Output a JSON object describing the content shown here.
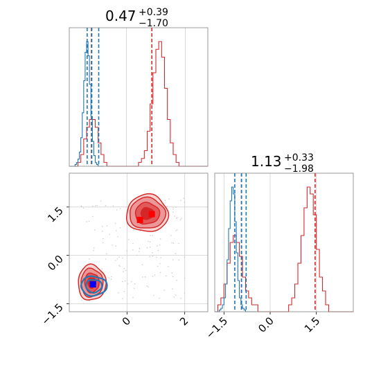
{
  "colors": {
    "red": "#d62728",
    "blue": "#1f77b4",
    "marker_blue": "#0000ff",
    "marker_red": "#ff0000",
    "grid": "#d0d0d0",
    "frame": "#7f7f7f"
  },
  "chart_data": [
    {
      "type": "histogram",
      "panel": "param1-marginal",
      "title": {
        "median": "0.47",
        "plus": "+0.39",
        "minus": "−1.70"
      },
      "xlim": [
        -2.0,
        2.8
      ],
      "grid": true,
      "series": [
        {
          "name": "",
          "color": "#d62728",
          "bin_start": -2.0,
          "bin_width": 0.1,
          "counts": [
            0,
            0,
            0,
            1,
            3,
            7,
            10,
            12,
            12,
            10,
            6,
            3,
            1,
            0,
            0,
            0,
            0,
            0,
            0,
            0,
            0,
            0,
            0,
            0,
            1,
            2,
            4,
            9,
            16,
            24,
            30,
            32,
            28,
            20,
            12,
            6,
            3,
            1,
            0,
            0,
            0,
            0,
            0,
            0,
            0,
            0,
            0,
            0
          ],
          "quantiles": [
            -1.23,
            -1.23,
            0.86
          ]
        },
        {
          "name": "",
          "color": "#1f77b4",
          "bin_start": -2.0,
          "bin_width": 0.05,
          "counts": [
            0,
            0,
            0,
            0,
            1,
            2,
            4,
            8,
            16,
            30,
            48,
            64,
            70,
            62,
            46,
            28,
            14,
            6,
            2,
            1,
            0,
            0,
            0,
            0
          ],
          "quantiles": [
            -1.38,
            -1.22,
            -0.98
          ]
        }
      ]
    },
    {
      "type": "histogram",
      "panel": "param2-marginal",
      "title": {
        "median": "1.13",
        "plus": "+0.33",
        "minus": "−1.98"
      },
      "xlim": [
        -1.8,
        2.7
      ],
      "xticks": [
        "−1.5",
        "0.0",
        "1.5"
      ],
      "grid": true,
      "series": [
        {
          "name": "",
          "color": "#d62728",
          "bin_start": -1.8,
          "bin_width": 0.1,
          "counts": [
            0,
            1,
            2,
            4,
            7,
            10,
            11,
            10,
            8,
            5,
            3,
            2,
            1,
            1,
            0,
            0,
            0,
            0,
            0,
            0,
            0,
            0,
            0,
            0,
            1,
            2,
            4,
            7,
            11,
            15,
            18,
            17,
            14,
            9,
            5,
            3,
            1,
            0,
            0,
            0,
            0,
            0,
            0,
            0,
            0
          ],
          "quantiles": [
            -0.93,
            -0.93,
            1.46
          ]
        },
        {
          "name": "",
          "color": "#1f77b4",
          "bin_start": -1.8,
          "bin_width": 0.05,
          "counts": [
            0,
            0,
            0,
            1,
            2,
            4,
            8,
            16,
            30,
            48,
            64,
            72,
            68,
            52,
            34,
            18,
            8,
            4,
            2,
            1,
            0,
            0,
            0,
            0,
            0,
            0,
            0
          ],
          "quantiles": [
            -1.15,
            -0.93,
            -0.78
          ]
        }
      ]
    },
    {
      "type": "contour",
      "panel": "param1-vs-param2",
      "xlim": [
        -2.0,
        2.8
      ],
      "ylim": [
        -1.75,
        2.55
      ],
      "xticks": [
        "0",
        "2"
      ],
      "yticks": [
        "−1.5",
        "0.0",
        "1.5"
      ],
      "grid": true,
      "clusters": [
        {
          "color": "#d62728",
          "center": [
            0.7,
            1.3
          ],
          "levels_radius": [
            [
              0.72,
              0.58
            ],
            [
              0.62,
              0.48
            ],
            [
              0.42,
              0.33
            ],
            [
              0.22,
              0.18
            ]
          ]
        },
        {
          "color": "#d62728",
          "center": [
            -1.22,
            -0.85
          ],
          "levels_radius": [
            [
              0.48,
              0.55
            ],
            [
              0.38,
              0.44
            ],
            [
              0.25,
              0.3
            ],
            [
              0.14,
              0.16
            ]
          ]
        },
        {
          "color": "#1f77b4",
          "center": [
            -1.15,
            -0.95
          ],
          "levels_radius": [
            [
              0.45,
              0.3
            ],
            [
              0.28,
              0.2
            ]
          ]
        }
      ],
      "markers": [
        {
          "color": "#ff0000",
          "x": 0.86,
          "y": 1.28
        },
        {
          "color": "#ff0000",
          "x": 0.45,
          "y": 1.1
        },
        {
          "color": "#ff0000",
          "x": -1.2,
          "y": -0.9
        },
        {
          "color": "#0000ff",
          "x": -1.18,
          "y": -0.9
        }
      ]
    }
  ]
}
